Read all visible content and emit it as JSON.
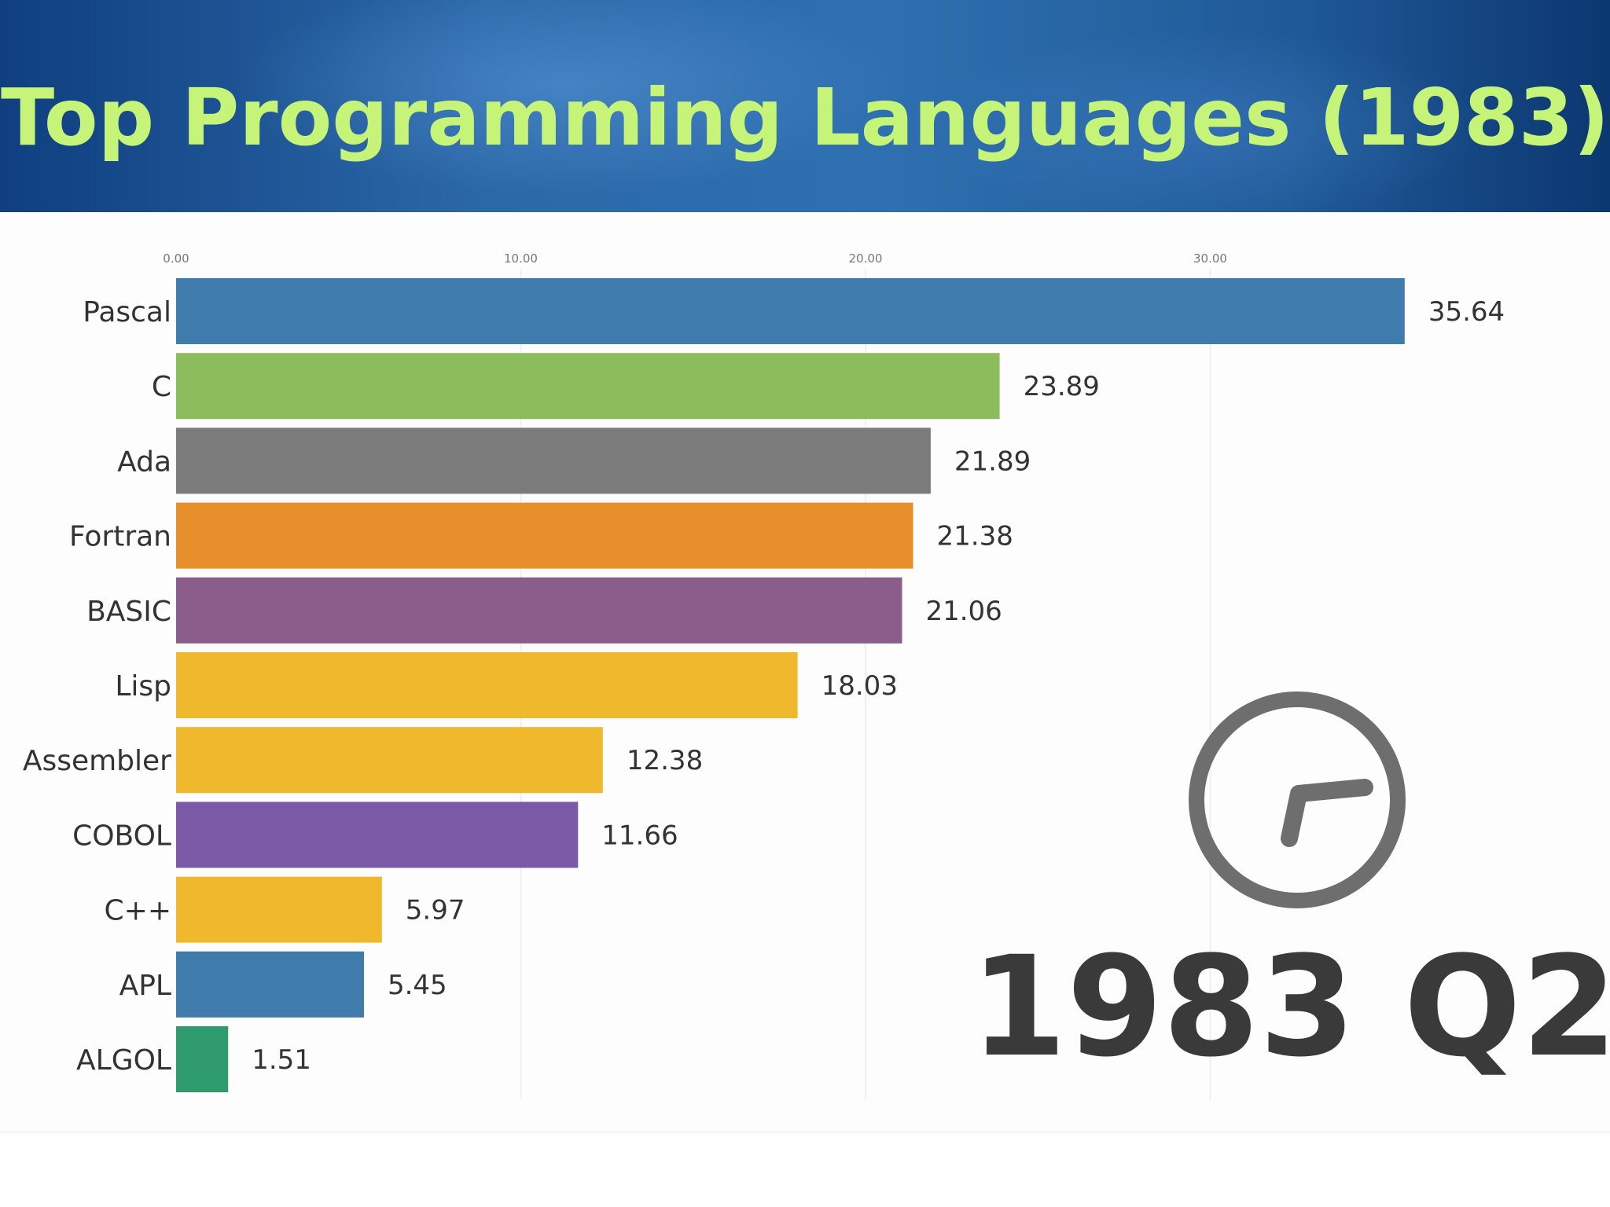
{
  "header": {
    "title": "Top Programming Languages (1983)"
  },
  "chart_data": {
    "type": "bar",
    "orientation": "horizontal",
    "categories": [
      "Pascal",
      "C",
      "Ada",
      "Fortran",
      "BASIC",
      "Lisp",
      "Assembler",
      "COBOL",
      "C++",
      "APL",
      "ALGOL"
    ],
    "values": [
      35.64,
      23.89,
      21.89,
      21.38,
      21.06,
      18.03,
      12.38,
      11.66,
      5.97,
      5.45,
      1.51
    ],
    "value_labels": [
      "35.64",
      "23.89",
      "21.89",
      "21.38",
      "21.06",
      "18.03",
      "12.38",
      "11.66",
      "5.97",
      "5.45",
      "1.51"
    ],
    "colors": [
      "#3f7cac",
      "#8bbd5c",
      "#7b7b7b",
      "#e68f2b",
      "#8a5d8a",
      "#f0b82d",
      "#f0b82d",
      "#7a5aa6",
      "#f0b82d",
      "#3f7cac",
      "#2f9a6e"
    ],
    "xticks": [
      0,
      10,
      20,
      30
    ],
    "xtick_labels": [
      "0.00",
      "10.00",
      "20.00",
      "30.00"
    ],
    "xlim": [
      0,
      35.64
    ],
    "grid": true,
    "period_label": "1983 Q2",
    "clock_icon": "clock-icon",
    "clock_color": "#6e6e6e"
  }
}
